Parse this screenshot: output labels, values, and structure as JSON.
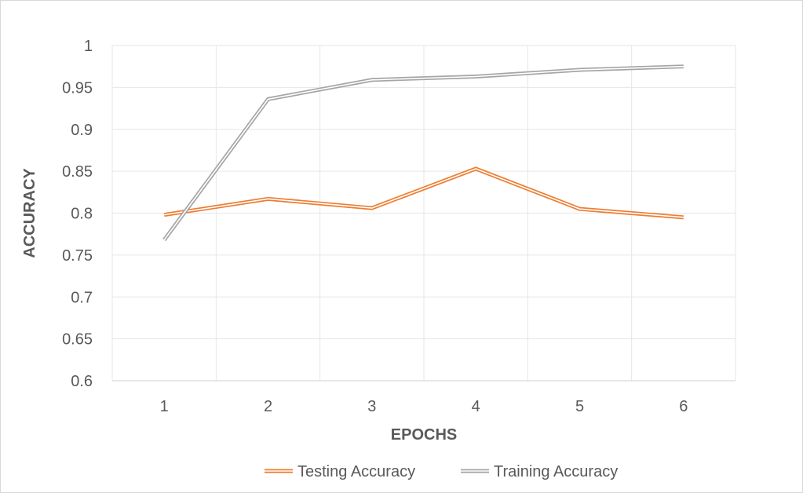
{
  "chart_data": {
    "type": "line",
    "title": "",
    "xlabel": "EPOCHS",
    "ylabel": "ACCURACY",
    "categories": [
      "1",
      "2",
      "3",
      "4",
      "5",
      "6"
    ],
    "ylim": [
      0.6,
      1
    ],
    "yticks": [
      0.6,
      0.65,
      0.7,
      0.75,
      0.8,
      0.85,
      0.9,
      0.95,
      1
    ],
    "ytick_labels": [
      "0.6",
      "0.65",
      "0.7",
      "0.75",
      "0.8",
      "0.85",
      "0.9",
      "0.95",
      "1"
    ],
    "grid": true,
    "legend_position": "bottom",
    "series": [
      {
        "name": "Testing Accuracy",
        "color": "#ED7D31",
        "values": [
          0.798,
          0.817,
          0.806,
          0.853,
          0.805,
          0.795
        ]
      },
      {
        "name": "Training Accuracy",
        "color": "#A5A5A5",
        "values": [
          0.768,
          0.936,
          0.959,
          0.963,
          0.971,
          0.975
        ]
      }
    ]
  }
}
